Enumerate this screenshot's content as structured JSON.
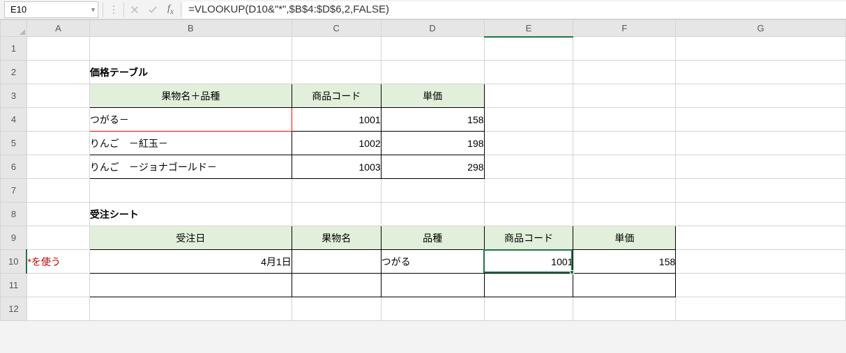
{
  "nameBox": {
    "value": "E10"
  },
  "formulaBar": {
    "formula": "=VLOOKUP(D10&\"*\",$B$4:$D$6,2,FALSE)"
  },
  "columns": [
    "A",
    "B",
    "C",
    "D",
    "E",
    "F",
    "G"
  ],
  "rowCount": 12,
  "activeCell": {
    "row": 10,
    "col": "E"
  },
  "priceTable": {
    "title": "価格テーブル",
    "headers": {
      "name": "果物名＋品種",
      "code": "商品コード",
      "price": "単価"
    },
    "rows": [
      {
        "name": "つがる－",
        "code": "1001",
        "price": "158"
      },
      {
        "name": "りんご　－紅玉－",
        "code": "1002",
        "price": "198"
      },
      {
        "name": "りんご　－ジョナゴールド－",
        "code": "1003",
        "price": "298"
      }
    ]
  },
  "orderSheet": {
    "title": "受注シート",
    "headers": {
      "date": "受注日",
      "fruit": "果物名",
      "variety": "品種",
      "code": "商品コード",
      "price": "単価"
    },
    "note": "*を使う",
    "rows": [
      {
        "date": "4月1日",
        "fruit": "",
        "variety": "つがる",
        "code": "1001",
        "price": "158"
      },
      {
        "date": "",
        "fruit": "",
        "variety": "",
        "code": "",
        "price": ""
      }
    ]
  },
  "colors": {
    "headerBg": "#e2efda",
    "redBorder": "#ff0000",
    "redText": "#c00000",
    "activeBorder": "#217346",
    "gridBorder": "#d4d4d4",
    "headerGridBorder": "#b7b7b7"
  }
}
